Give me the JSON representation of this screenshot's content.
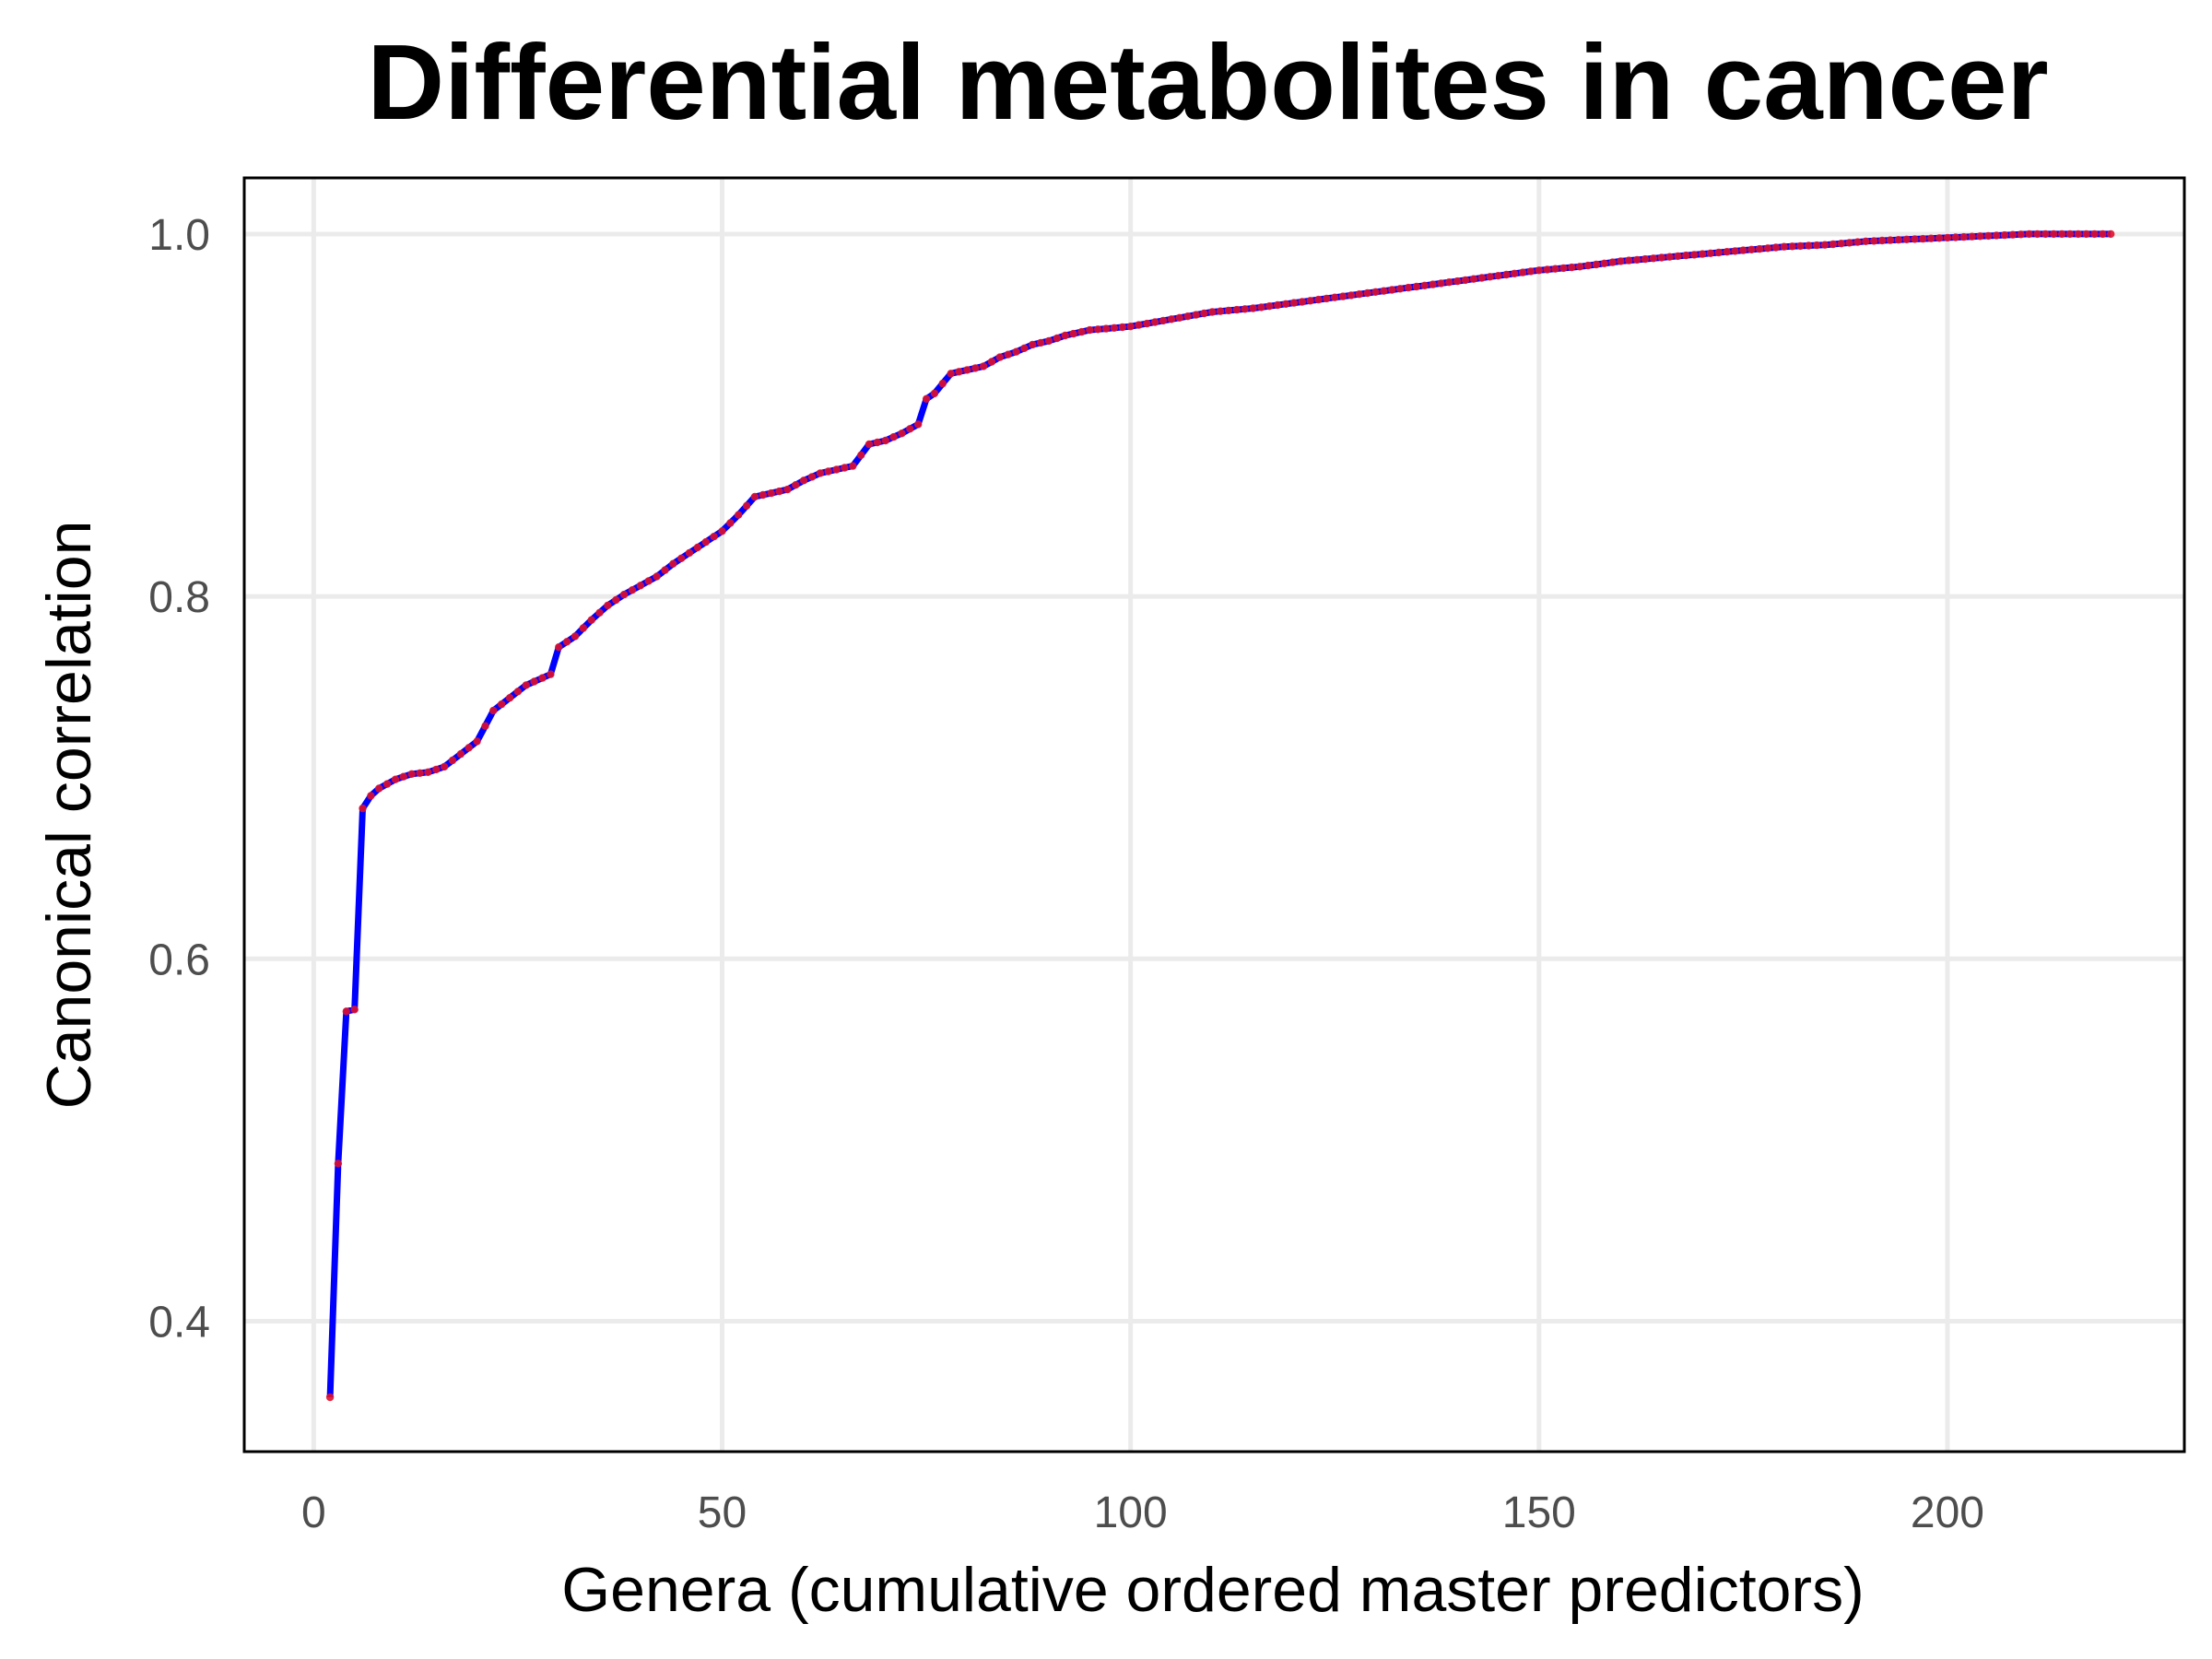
{
  "chart_data": {
    "type": "line",
    "title": "Differential metabolites in cancer",
    "xlabel": "Genera (cumulative ordered master predictors)",
    "ylabel": "Canonical correlation",
    "xlim": [
      -8.5,
      229
    ],
    "ylim": [
      0.328,
      1.031
    ],
    "x_ticks": [
      0,
      50,
      100,
      150,
      200
    ],
    "y_ticks": [
      0.4,
      0.6,
      0.8,
      1.0
    ],
    "x_tick_labels": [
      "0",
      "50",
      "100",
      "150",
      "200"
    ],
    "y_tick_labels": [
      "0.4",
      "0.6",
      "0.8",
      "1.0"
    ],
    "grid": true,
    "colors": {
      "line": "#0000ff",
      "points": "#e0112b",
      "grid": "#ebebeb",
      "frame": "#000000"
    },
    "series": [
      {
        "x_start": 2,
        "x_end": 220,
        "knots": [
          [
            2,
            0.358
          ],
          [
            3,
            0.487
          ],
          [
            4,
            0.571
          ],
          [
            5,
            0.572
          ],
          [
            6,
            0.683
          ],
          [
            7,
            0.69
          ],
          [
            8,
            0.694
          ],
          [
            10,
            0.699
          ],
          [
            12,
            0.702
          ],
          [
            14,
            0.703
          ],
          [
            16,
            0.706
          ],
          [
            18,
            0.713
          ],
          [
            20,
            0.72
          ],
          [
            22,
            0.737
          ],
          [
            24,
            0.744
          ],
          [
            26,
            0.751
          ],
          [
            28,
            0.755
          ],
          [
            29,
            0.757
          ],
          [
            30,
            0.772
          ],
          [
            32,
            0.778
          ],
          [
            34,
            0.787
          ],
          [
            36,
            0.795
          ],
          [
            38,
            0.801
          ],
          [
            40,
            0.806
          ],
          [
            42,
            0.811
          ],
          [
            44,
            0.818
          ],
          [
            46,
            0.824
          ],
          [
            48,
            0.83
          ],
          [
            50,
            0.836
          ],
          [
            52,
            0.845
          ],
          [
            54,
            0.855
          ],
          [
            56,
            0.857
          ],
          [
            58,
            0.859
          ],
          [
            60,
            0.864
          ],
          [
            62,
            0.868
          ],
          [
            64,
            0.87
          ],
          [
            66,
            0.872
          ],
          [
            68,
            0.884
          ],
          [
            70,
            0.886
          ],
          [
            72,
            0.89
          ],
          [
            74,
            0.895
          ],
          [
            75,
            0.909
          ],
          [
            76,
            0.912
          ],
          [
            78,
            0.923
          ],
          [
            80,
            0.925
          ],
          [
            82,
            0.927
          ],
          [
            84,
            0.932
          ],
          [
            86,
            0.935
          ],
          [
            88,
            0.939
          ],
          [
            90,
            0.941
          ],
          [
            92,
            0.944
          ],
          [
            95,
            0.947
          ],
          [
            100,
            0.949
          ],
          [
            105,
            0.953
          ],
          [
            110,
            0.957
          ],
          [
            115,
            0.959
          ],
          [
            120,
            0.962
          ],
          [
            125,
            0.965
          ],
          [
            130,
            0.968
          ],
          [
            135,
            0.971
          ],
          [
            140,
            0.974
          ],
          [
            145,
            0.977
          ],
          [
            150,
            0.98
          ],
          [
            155,
            0.982
          ],
          [
            160,
            0.985
          ],
          [
            165,
            0.987
          ],
          [
            170,
            0.989
          ],
          [
            175,
            0.991
          ],
          [
            180,
            0.993
          ],
          [
            185,
            0.994
          ],
          [
            190,
            0.996
          ],
          [
            195,
            0.997
          ],
          [
            200,
            0.998
          ],
          [
            205,
            0.999
          ],
          [
            210,
            1.0
          ],
          [
            220,
            1.0
          ]
        ]
      }
    ]
  }
}
